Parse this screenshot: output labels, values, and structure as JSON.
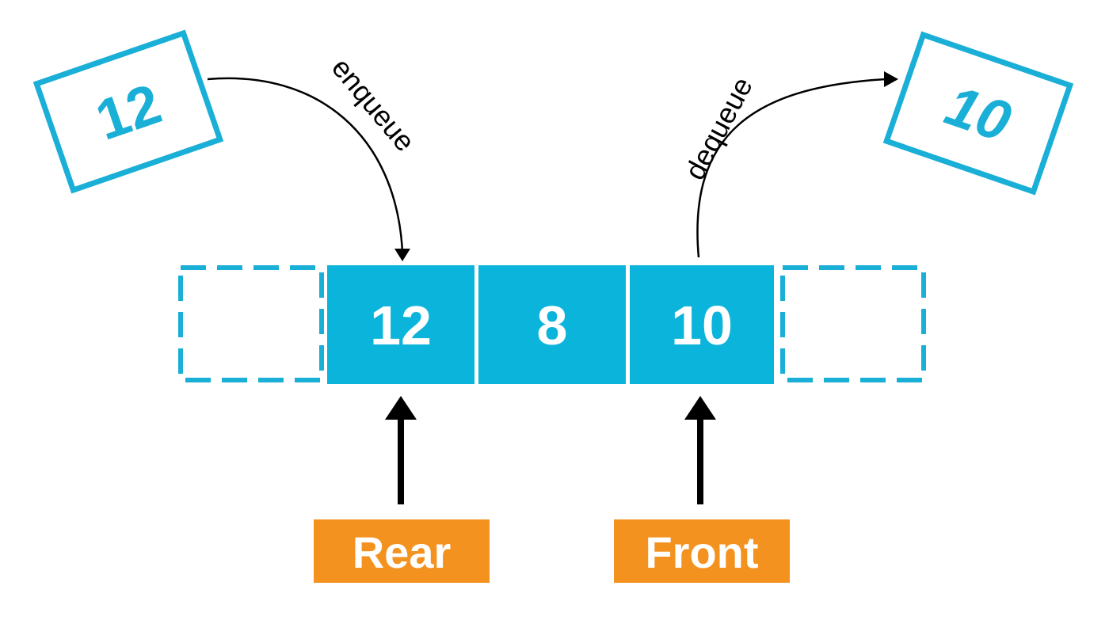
{
  "colors": {
    "cell_fill": "#0BB4DB",
    "outline": "#1AAFD6",
    "pointer_fill": "#F4921F",
    "arrow": "#000000",
    "text_on_fill": "#FFFFFF"
  },
  "queue": {
    "cells": [
      {
        "value": "12",
        "style": "filled"
      },
      {
        "value": "8",
        "style": "filled"
      },
      {
        "value": "10",
        "style": "filled"
      }
    ],
    "empty_slots": 2
  },
  "incoming": {
    "value": "12",
    "operation": "enqueue"
  },
  "outgoing": {
    "value": "10",
    "operation": "dequeue"
  },
  "pointers": {
    "rear": "Rear",
    "front": "Front"
  }
}
